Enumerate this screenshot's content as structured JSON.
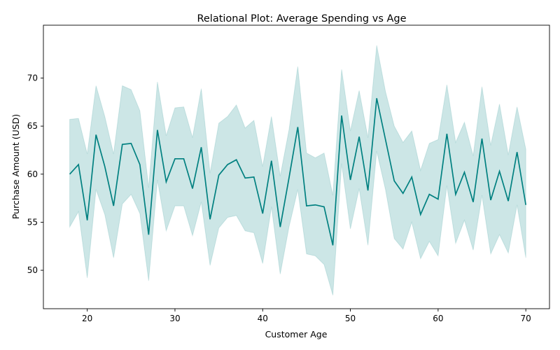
{
  "chart_data": {
    "type": "line",
    "title": "Relational Plot: Average Spending vs Age",
    "xlabel": "Customer Age",
    "ylabel": "Purchase Amount (USD)",
    "xlim": [
      15,
      72.7
    ],
    "ylim": [
      46,
      75.5
    ],
    "xticks": [
      20,
      30,
      40,
      50,
      60,
      70
    ],
    "yticks": [
      50,
      55,
      60,
      65,
      70
    ],
    "grid": false,
    "colors": {
      "line": "#008080",
      "band": "#008080"
    },
    "series": [
      {
        "x": [
          18,
          19,
          20,
          21,
          22,
          23,
          24,
          25,
          26,
          27,
          28,
          29,
          30,
          31,
          32,
          33,
          34,
          35,
          36,
          37,
          38,
          39,
          40,
          41,
          42,
          43,
          44,
          45,
          46,
          47,
          48,
          49,
          50,
          51,
          52,
          53,
          54,
          55,
          56,
          57,
          58,
          59,
          60,
          61,
          62,
          63,
          64,
          65,
          66,
          67,
          68,
          69,
          70
        ],
        "mean": [
          60.0,
          61.0,
          55.2,
          64.1,
          60.8,
          56.7,
          63.1,
          63.2,
          61.0,
          53.7,
          64.6,
          59.2,
          61.6,
          61.6,
          58.5,
          62.8,
          55.3,
          59.9,
          61.0,
          61.5,
          59.6,
          59.7,
          55.9,
          61.4,
          54.5,
          59.6,
          64.9,
          56.7,
          56.8,
          56.6,
          52.6,
          66.1,
          59.4,
          63.9,
          58.3,
          67.9,
          63.6,
          59.3,
          58.0,
          59.7,
          55.8,
          57.9,
          57.4,
          64.2,
          57.9,
          60.2,
          57.1,
          63.7,
          57.3,
          60.3,
          57.2,
          62.3,
          56.8
        ],
        "ci_low": [
          54.5,
          56.1,
          49.2,
          58.4,
          55.8,
          51.3,
          56.9,
          57.9,
          55.9,
          48.9,
          59.4,
          54.1,
          56.7,
          56.7,
          53.6,
          57.1,
          50.5,
          54.4,
          55.5,
          55.7,
          54.1,
          53.9,
          50.7,
          56.6,
          49.6,
          54.5,
          58.4,
          51.7,
          51.5,
          50.6,
          47.4,
          61.1,
          54.3,
          58.5,
          52.6,
          62.4,
          58.4,
          53.3,
          52.2,
          55.0,
          51.2,
          53.0,
          51.5,
          58.8,
          52.8,
          55.2,
          52.1,
          57.8,
          51.7,
          53.7,
          51.8,
          56.8,
          51.3
        ],
        "ci_high": [
          65.7,
          65.8,
          62.1,
          69.2,
          66.0,
          62.1,
          69.2,
          68.8,
          66.6,
          58.6,
          69.6,
          64.0,
          66.9,
          67.0,
          63.8,
          68.9,
          60.1,
          65.3,
          66.0,
          67.2,
          64.8,
          65.6,
          60.8,
          66.0,
          59.8,
          64.6,
          71.2,
          62.2,
          61.7,
          62.2,
          57.8,
          70.9,
          64.5,
          68.7,
          63.8,
          73.4,
          68.6,
          65.0,
          63.3,
          64.5,
          60.4,
          63.2,
          63.6,
          69.3,
          63.3,
          65.4,
          61.9,
          69.1,
          63.0,
          67.3,
          62.0,
          67.0,
          62.6
        ]
      }
    ]
  }
}
